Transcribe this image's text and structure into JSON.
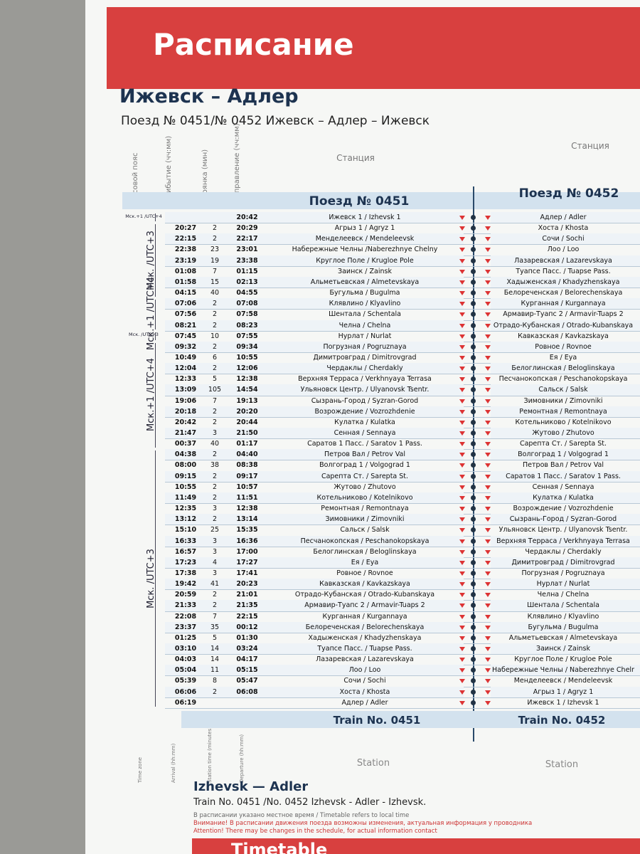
{
  "header": {
    "title": "Расписание"
  },
  "route": {
    "title": "Ижевск – Адлер",
    "subtitle": "Поезд № 0451/№ 0452 Ижевск – Адлер – Ижевск"
  },
  "columns": {
    "time_zone": "Часовой пояс",
    "arrival": "Прибытие (чч:мм)",
    "stop": "Стоянка (мин)",
    "departure": "Отправление (чч:мм)",
    "station": "Станция",
    "station_2": "Станция"
  },
  "train_0451": {
    "title": "Поезд № 0451",
    "groups": [
      {
        "time_zone": "Мск.+1 /UTC+4",
        "stops": [
          [
            "Ижевск 1 / Izhevsk 1",
            null,
            null,
            "20:42"
          ]
        ]
      },
      {
        "time_zone": "Мск. /UTC+3",
        "stops": [
          [
            "Агрыз 1 / Agryz 1",
            "20:27",
            2,
            "20:29"
          ],
          [
            "Менделеевск / Mendeleevsk",
            "22:15",
            2,
            "22:17"
          ],
          [
            "Набережные Челны /Naberezhnye Chelny",
            "22:38",
            23,
            "23:01"
          ],
          [
            "Круглое Поле / Krugloe Pole",
            "23:19",
            19,
            "23:38"
          ],
          [
            "Заинск / Zainsk",
            "01:08",
            7,
            "01:15"
          ],
          [
            "Альметьевская / Almetevskaya",
            "01:58",
            15,
            "02:13"
          ],
          [
            "Бугульма / Bugulma",
            "04:15",
            40,
            "04:55"
          ]
        ]
      },
      {
        "time_zone": "Мск.+1 /UTC+4",
        "stops": [
          [
            "Клявлино / Klyavlino",
            "07:06",
            2,
            "07:08"
          ],
          [
            "Шентала / Schentala",
            "07:56",
            2,
            "07:58"
          ],
          [
            "Челна / Chelna",
            "08:21",
            2,
            "08:23"
          ]
        ]
      },
      {
        "time_zone": "Мск. /UTC+3",
        "stops": [
          [
            "Нурлат / Nurlat",
            "07:45",
            10,
            "07:55"
          ]
        ]
      },
      {
        "time_zone": "Мск.+1 /UTC+4",
        "stops": [
          [
            "Погрузная / Pogruznaya",
            "09:32",
            2,
            "09:34"
          ],
          [
            "Димитровград / Dimitrovgrad",
            "10:49",
            6,
            "10:55"
          ],
          [
            "Чердаклы / Cherdakly",
            "12:04",
            2,
            "12:06"
          ],
          [
            "Верхняя Терраса / Verkhnyaya Terrasa",
            "12:33",
            5,
            "12:38"
          ],
          [
            "Ульяновск Центр. / Ulyanovsk Tsentr.",
            "13:09",
            105,
            "14:54"
          ],
          [
            "Сызрань-Город / Syzran-Gorod",
            "19:06",
            7,
            "19:13"
          ],
          [
            "Возрождение / Vozrozhdenie",
            "20:18",
            2,
            "20:20"
          ],
          [
            "Кулатка / Kulatka",
            "20:42",
            2,
            "20:44"
          ],
          [
            "Сенная / Sennaya",
            "21:47",
            3,
            "21:50"
          ],
          [
            "Саратов 1 Пасс. / Saratov 1 Pass.",
            "00:37",
            40,
            "01:17"
          ]
        ]
      },
      {
        "time_zone": "Мск. /UTC+3",
        "stops": [
          [
            "Петров Вал / Petrov Val",
            "04:38",
            2,
            "04:40"
          ],
          [
            "Волгоград 1 / Volgograd 1",
            "08:00",
            38,
            "08:38"
          ],
          [
            "Сарепта Ст. / Sarepta St.",
            "09:15",
            2,
            "09:17"
          ],
          [
            "Жутово / Zhutovo",
            "10:55",
            2,
            "10:57"
          ],
          [
            "Котельниково / Kotelnikovo",
            "11:49",
            2,
            "11:51"
          ],
          [
            "Ремонтная / Remontnaya",
            "12:35",
            3,
            "12:38"
          ],
          [
            "Зимовники / Zimovniki",
            "13:12",
            2,
            "13:14"
          ],
          [
            "Сальск / Salsk",
            "15:10",
            25,
            "15:35"
          ],
          [
            "Песчанокопская / Peschanokopskaya",
            "16:33",
            3,
            "16:36"
          ],
          [
            "Белоглинская / Beloglinskaya",
            "16:57",
            3,
            "17:00"
          ],
          [
            "Ея / Eya",
            "17:23",
            4,
            "17:27"
          ],
          [
            "Ровное / Rovnoe",
            "17:38",
            3,
            "17:41"
          ],
          [
            "Кавказская / Kavkazskaya",
            "19:42",
            41,
            "20:23"
          ],
          [
            "Отрадо-Кубанская / Otrado-Kubanskaya",
            "20:59",
            2,
            "21:01"
          ],
          [
            "Армавир-Туапс 2 / Armavir-Tuaps 2",
            "21:33",
            2,
            "21:35"
          ],
          [
            "Курганная / Kurgannaya",
            "22:08",
            7,
            "22:15"
          ],
          [
            "Белореченская / Belorechenskaya",
            "23:37",
            35,
            "00:12"
          ],
          [
            "Хадыженская / Khadyzhenskaya",
            "01:25",
            5,
            "01:30"
          ],
          [
            "Туапсе Пасс. / Tuapse Pass.",
            "03:10",
            14,
            "03:24"
          ],
          [
            "Лазаревская / Lazarevskaya",
            "04:03",
            14,
            "04:17"
          ],
          [
            "Лоо / Loo",
            "05:04",
            11,
            "05:15"
          ],
          [
            "Сочи / Sochi",
            "05:39",
            8,
            "05:47"
          ],
          [
            "Хоста / Khosta",
            "06:06",
            2,
            "06:08"
          ],
          [
            "Адлер / Adler",
            "06:19",
            null,
            null
          ]
        ]
      }
    ]
  },
  "train_0452": {
    "title": "Поезд № 0452",
    "stations": [
      "Адлер / Adler",
      "Хоста / Khosta",
      "Сочи / Sochi",
      "Лоо / Loo",
      "Лазаревская / Lazarevskaya",
      "Туапсе Пасс. / Tuapse Pass.",
      "Хадыженская / Khadyzhenskaya",
      "Белореченская / Belorechenskaya",
      "Курганная / Kurgannaya",
      "Армавир-Туапс 2 / Armavir-Tuaps 2",
      "Отрадо-Кубанская / Otrado-Kubanskaya",
      "Кавказская / Kavkazskaya",
      "Ровное / Rovnoe",
      "Ея / Eya",
      "Белоглинская / Beloglinskaya",
      "Песчанокопская / Peschanokopskaya",
      "Сальск / Salsk",
      "Зимовники / Zimovniki",
      "Ремонтная / Remontnaya",
      "Котельниково / Kotelnikovo",
      "Жутово / Zhutovo",
      "Сарепта Ст. / Sarepta St.",
      "Волгоград 1 / Volgograd 1",
      "Петров Вал / Petrov Val",
      "Саратов 1 Пасс. / Saratov 1 Pass.",
      "Сенная / Sennaya",
      "Кулатка / Kulatka",
      "Возрождение / Vozrozhdenie",
      "Сызрань-Город / Syzran-Gorod",
      "Ульяновск Центр. / Ulyanovsk Tsentr.",
      "Верхняя Терраса / Verkhnyaya Terrasa",
      "Чердаклы / Cherdakly",
      "Димитровград / Dimitrovgrad",
      "Погрузная / Pogruznaya",
      "Нурлат / Nurlat",
      "Челна / Chelna",
      "Шентала / Schentala",
      "Клявлино / Klyavlino",
      "Бугульма / Bugulma",
      "Альметьевская / Almetevskaya",
      "Заинск / Zainsk",
      "Круглое Поле / Krugloe Pole",
      "Набережные Челны / Naberezhnye Chelny",
      "Менделеевск / Mendeleevsk",
      "Агрыз 1 / Agryz 1",
      "Ижевск 1 / Izhevsk 1"
    ]
  },
  "footer": {
    "train_0451": "Train No. 0451",
    "train_0452": "Train No. 0452",
    "columns": {
      "time_zone": "Time zone",
      "arrival": "Arrival (hh:mm)",
      "stop": "Station time (minutes)",
      "departure": "Departure (hh:mm)",
      "station": "Station",
      "station_2": "Station"
    },
    "title": "Izhevsk — Adler",
    "subtitle": "Train No. 0451 /No. 0452 Izhevsk - Adler - Izhevsk.",
    "notes": [
      "В расписании указано местное время / Timetable refers to local time",
      "Внимание! В расписании движения поезда возможны изменения, актуальная информация у проводника",
      "Attention! There may be changes in the schedule, for actual information contact"
    ],
    "banner": "Timetable"
  }
}
